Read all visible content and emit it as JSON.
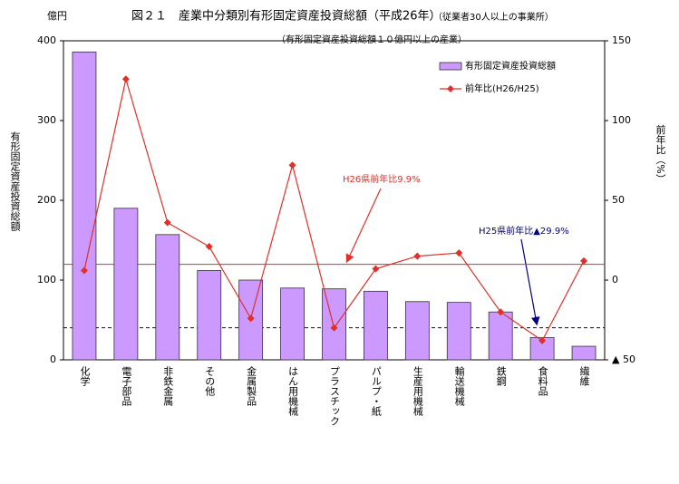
{
  "chart_data": {
    "type": "bar",
    "title": "図２１　産業中分類別有形固定資産投資総額（平成26年）",
    "title_note": "（従業者30人以上の事業所）",
    "subtitle": "（有形固定資産投資総額１０億円以上の産業）",
    "y_unit": "億円",
    "y_label": "有形固定資産投資総額",
    "y2_label": "前年比（%）",
    "categories": [
      "化学",
      "電子部品",
      "非鉄金属",
      "その他",
      "金属製品",
      "はん用機械",
      "プラスチック",
      "パルプ・紙",
      "生産用機械",
      "輸送機械",
      "鉄鋼",
      "食料品",
      "繊維"
    ],
    "series": [
      {
        "name": "有形固定資産投資総額",
        "type": "bar",
        "color": "#cc99ff",
        "axis": "y",
        "values": [
          386,
          190,
          157,
          112,
          100,
          90,
          89,
          86,
          73,
          72,
          60,
          28,
          17
        ]
      },
      {
        "name": "前年比(H26/H25)",
        "type": "line",
        "color": "#e03028",
        "axis": "y2",
        "values": [
          6,
          126,
          36,
          21,
          -24,
          72,
          -30,
          7,
          15,
          17,
          -20,
          -38,
          12
        ]
      }
    ],
    "ylim": [
      0,
      400
    ],
    "yticks": [
      0,
      100,
      200,
      300,
      400
    ],
    "y2lim": [
      -50,
      150
    ],
    "y2ticks": [
      {
        "value": -50,
        "label": "▲ 50"
      },
      0,
      50,
      100,
      150
    ],
    "reference_lines": [
      {
        "value": 9.9,
        "label": "H26県前年比9.9%",
        "color": "#e03028",
        "dashed": false
      },
      {
        "value": -29.9,
        "label": "H25県前年比▲29.9%",
        "color": "#000080",
        "dashed": true
      }
    ]
  }
}
